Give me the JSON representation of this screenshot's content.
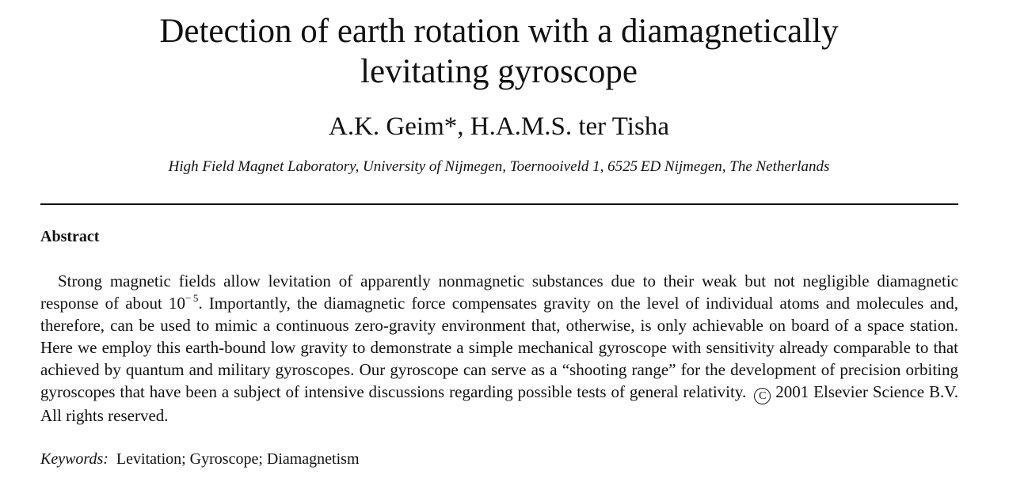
{
  "title": {
    "line1": "Detection of earth rotation with a diamagnetically",
    "line2": "levitating gyroscope"
  },
  "authors": "A.K. Geim*, H.A.M.S. ter Tisha",
  "affiliation": "High Field Magnet Laboratory, University of Nijmegen, Toernooiveld 1, 6525 ED Nijmegen, The Netherlands",
  "abstract": {
    "heading": "Abstract",
    "text_part1": "Strong magnetic fields allow levitation of apparently nonmagnetic substances due to their weak but not negligible diamagnetic response of about 10",
    "exponent": "− 5",
    "text_part2": ". Importantly, the diamagnetic force compensates gravity on the level of individual atoms and molecules and, therefore, can be used to mimic a continuous zero-gravity environment that, otherwise, is only achievable on board of a space station. Here we employ this earth-bound low gravity to demonstrate a simple mechanical gyroscope with sensitivity already comparable to that achieved by quantum and military gyroscopes. Our gyroscope can serve as a “shooting range” for the development of precision orbiting gyroscopes that have been a subject of intensive discussions regarding possible tests of general relativity.",
    "copyright_symbol": "C",
    "copyright_text": "2001 Elsevier Science B.V. All rights reserved."
  },
  "keywords": {
    "label": "Keywords:",
    "values": "Levitation; Gyroscope; Diamagnetism"
  }
}
